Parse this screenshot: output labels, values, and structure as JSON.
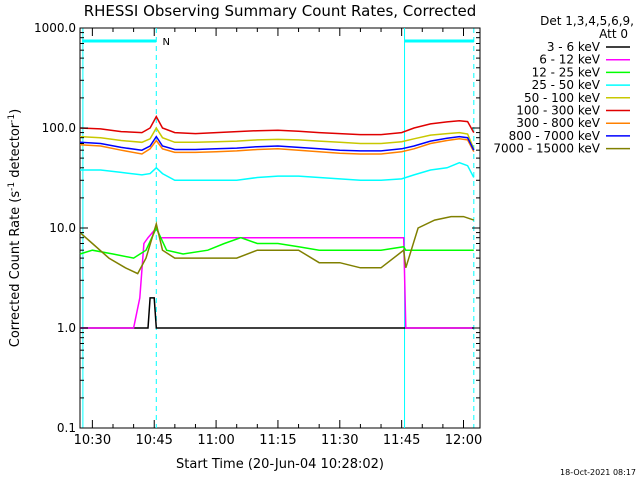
{
  "chart_data": {
    "type": "line",
    "title": "RHESSI Observing Summary Count Rates, Corrected",
    "xlabel": "Start Time (20-Jun-04 10:28:02)",
    "ylabel_main": "Corrected Count Rate (s",
    "ylabel_sup1": "-1",
    "ylabel_mid": " detector",
    "ylabel_sup2": "-1",
    "ylabel_end": ")",
    "yscale": "log",
    "ylim": [
      0.1,
      1000
    ],
    "xlim_minutes": [
      627,
      724
    ],
    "x_ticks": [
      {
        "m": 630,
        "label": "10:30"
      },
      {
        "m": 645,
        "label": "10:45"
      },
      {
        "m": 660,
        "label": "11:00"
      },
      {
        "m": 675,
        "label": "11:15"
      },
      {
        "m": 690,
        "label": "11:30"
      },
      {
        "m": 705,
        "label": "11:45"
      },
      {
        "m": 720,
        "label": "12:00"
      }
    ],
    "y_ticks": [
      {
        "v": 1000,
        "label": "1000.0"
      },
      {
        "v": 100,
        "label": "100.0"
      },
      {
        "v": 10,
        "label": "10.0"
      },
      {
        "v": 1,
        "label": "1.0"
      },
      {
        "v": 0.1,
        "label": "0.1"
      }
    ],
    "legend_header": [
      "Det 1,3,4,5,6,9,",
      "Att 0"
    ],
    "legend_placement": "right",
    "footer_date": "18-Oct-2021 08:17",
    "night_marker_label": "N",
    "night_intervals": [
      [
        627.5,
        645.5
      ],
      [
        705.7,
        722.5
      ]
    ],
    "dashed_markers": [
      645.5,
      722.5
    ],
    "solid_markers": [
      627.7,
      705.7
    ],
    "series": [
      {
        "name": "3 - 6 keV",
        "color": "#000000",
        "x": [
          627,
          632,
          637,
          641,
          643.5,
          644,
          645,
          645.5,
          646,
          650,
          660,
          670,
          680,
          690,
          700,
          704,
          705.5,
          706,
          722.5
        ],
        "y": [
          1,
          1,
          1,
          1,
          1,
          2,
          2,
          1,
          1,
          1,
          1,
          1,
          1,
          1,
          1,
          1,
          1,
          1,
          1
        ]
      },
      {
        "name": "6 - 12 keV",
        "color": "#ff00ff",
        "x": [
          627,
          640,
          641.5,
          642.5,
          643.5,
          645.5,
          646.5,
          648,
          655,
          660,
          665,
          670,
          675,
          680,
          690,
          700,
          705.5,
          706,
          706.5,
          722.5
        ],
        "y": [
          1,
          1,
          2,
          7,
          8,
          10,
          8,
          8,
          8,
          8,
          8,
          8,
          8,
          8,
          8,
          8,
          8,
          1,
          1,
          1
        ]
      },
      {
        "name": "12 - 25 keV",
        "color": "#00ff00",
        "x": [
          627,
          630,
          635,
          640,
          643,
          645.5,
          648,
          652,
          658,
          662,
          666,
          670,
          675,
          680,
          685,
          690,
          695,
          700,
          705.5,
          706,
          710,
          715,
          720,
          722.5
        ],
        "y": [
          5.5,
          6,
          5.5,
          5,
          6,
          10,
          6,
          5.5,
          6,
          7,
          8,
          7,
          7,
          6.5,
          6,
          6,
          6,
          6,
          6.5,
          6,
          6,
          6,
          6,
          6
        ]
      },
      {
        "name": "25 - 50 keV",
        "color": "#00ffff",
        "x": [
          627,
          632,
          637,
          642,
          644,
          645.5,
          647,
          650,
          655,
          660,
          665,
          670,
          675,
          680,
          685,
          690,
          695,
          700,
          705,
          708,
          712,
          716,
          719,
          721,
          722.5
        ],
        "y": [
          38,
          38,
          36,
          34,
          35,
          40,
          35,
          30,
          30,
          30,
          30,
          32,
          33,
          33,
          32,
          31,
          30,
          30,
          31,
          34,
          38,
          40,
          45,
          42,
          32
        ]
      },
      {
        "name": "50 - 100 keV",
        "color": "#c8c800",
        "x": [
          627,
          632,
          637,
          642,
          644,
          645.5,
          647,
          650,
          655,
          660,
          665,
          670,
          675,
          680,
          685,
          690,
          695,
          700,
          705,
          708,
          712,
          716,
          719,
          721,
          722.5
        ],
        "y": [
          82,
          80,
          75,
          72,
          78,
          100,
          80,
          72,
          72,
          73,
          74,
          76,
          77,
          76,
          74,
          72,
          70,
          70,
          73,
          78,
          85,
          88,
          90,
          87,
          62
        ]
      },
      {
        "name": "100 - 300 keV",
        "color": "#e00000",
        "x": [
          627,
          632,
          637,
          642,
          644,
          645.5,
          647,
          650,
          655,
          660,
          665,
          670,
          675,
          680,
          685,
          690,
          695,
          700,
          705,
          708,
          712,
          716,
          719,
          721,
          722.5
        ],
        "y": [
          100,
          98,
          92,
          90,
          100,
          130,
          100,
          90,
          88,
          90,
          92,
          94,
          95,
          93,
          90,
          88,
          86,
          86,
          90,
          100,
          110,
          115,
          118,
          116,
          90
        ]
      },
      {
        "name": "300 - 800 keV",
        "color": "#ff8000",
        "x": [
          627,
          632,
          637,
          642,
          644,
          645.5,
          647,
          650,
          655,
          660,
          665,
          670,
          675,
          680,
          685,
          690,
          695,
          700,
          705,
          708,
          712,
          716,
          719,
          721,
          722.5
        ],
        "y": [
          68,
          66,
          60,
          55,
          62,
          75,
          62,
          57,
          57,
          58,
          59,
          61,
          62,
          60,
          58,
          56,
          55,
          55,
          58,
          62,
          70,
          75,
          78,
          76,
          58
        ]
      },
      {
        "name": "800 - 7000 keV",
        "color": "#0000ff",
        "x": [
          627,
          632,
          637,
          642,
          644,
          645.5,
          647,
          650,
          655,
          660,
          665,
          670,
          675,
          680,
          685,
          690,
          695,
          700,
          705,
          708,
          712,
          716,
          719,
          721,
          722.5
        ],
        "y": [
          72,
          70,
          64,
          60,
          66,
          82,
          66,
          61,
          61,
          62,
          63,
          65,
          66,
          64,
          62,
          60,
          59,
          59,
          62,
          66,
          74,
          79,
          82,
          80,
          60
        ]
      },
      {
        "name": "7000 - 15000 keV",
        "color": "#808000",
        "x": [
          627,
          630,
          634,
          638,
          641,
          643,
          645.5,
          647,
          650,
          655,
          660,
          665,
          670,
          675,
          680,
          685,
          690,
          695,
          700,
          705.5,
          706,
          709,
          713,
          717,
          720,
          722.5
        ],
        "y": [
          9,
          7,
          5,
          4,
          3.5,
          5,
          11,
          6,
          5,
          5,
          5,
          5,
          6,
          6,
          6,
          4.5,
          4.5,
          4,
          4,
          6,
          4,
          10,
          12,
          13,
          13,
          12
        ]
      }
    ]
  }
}
